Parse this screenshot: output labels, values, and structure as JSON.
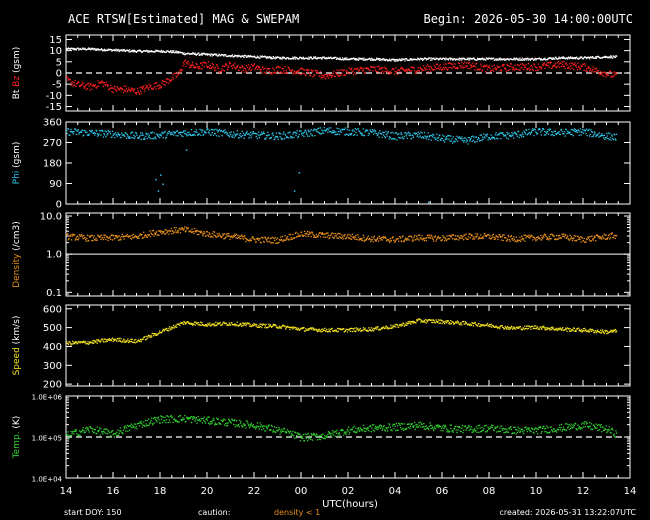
{
  "header": {
    "title": "ACE RTSW[Estimated] MAG & SWEPAM",
    "begin": "Begin: 2026-05-30 14:00:00UTC"
  },
  "footer": {
    "start_doy": "start DOY: 150",
    "caution": "caution:",
    "density_note": "density < 1",
    "created": "created: 2026-05-31 13:22:07UTC"
  },
  "colors": {
    "background": "#000000",
    "axes": "#ffffff",
    "bt": "#ffffff",
    "bz": "#ff2020",
    "phi": "#2ec4e6",
    "density": "#e8901c",
    "speed": "#f0e020",
    "temp": "#30d030",
    "caution_note": "#e8901c"
  },
  "chart_data": {
    "type": "scatter",
    "x_unit": "UTC(hours)",
    "x_ticks": [
      "14",
      "16",
      "18",
      "20",
      "22",
      "00",
      "02",
      "04",
      "06",
      "08",
      "10",
      "12",
      "14"
    ],
    "panels": [
      {
        "id": "mag",
        "ylabel_parts": [
          {
            "text": "Bt",
            "color": "#ffffff"
          },
          {
            "text": "Bz",
            "color": "#ff2020"
          },
          {
            "text": "(gsm)",
            "color": "#ffffff"
          }
        ],
        "ylim": [
          -17,
          17
        ],
        "yticks": [
          -15,
          -10,
          -5,
          0,
          5,
          10,
          15
        ],
        "ytick_labels": [
          "-15",
          "-10",
          "-5",
          "0",
          "5",
          "10",
          "15"
        ],
        "ref_line": 0,
        "series": [
          {
            "name": "Bt",
            "color": "#ffffff",
            "x": [
              0,
              1,
              2,
              3,
              3.6,
              4.2,
              4.8,
              5,
              6,
              7,
              8,
              9,
              10,
              11,
              12,
              13,
              14,
              15,
              16,
              17,
              18,
              19,
              20,
              21,
              22,
              23,
              23.4
            ],
            "y": [
              11,
              11,
              10.5,
              10,
              10,
              10,
              9.5,
              9,
              8.5,
              8,
              7.5,
              7,
              7,
              7,
              6.5,
              6.5,
              6,
              6.5,
              6.5,
              6.5,
              6.5,
              6.5,
              6.5,
              7,
              7,
              7.5,
              7.5
            ],
            "jitter": 0.5
          },
          {
            "name": "Bz",
            "color": "#ff2020",
            "x": [
              0,
              0.5,
              1,
              1.5,
              2,
              2.5,
              3,
              3.5,
              4,
              4.5,
              4.8,
              5,
              5.5,
              6,
              6.5,
              7,
              7.5,
              8,
              8.5,
              9,
              10,
              11,
              12,
              13,
              14,
              15,
              16,
              17,
              18,
              19,
              20,
              21,
              22,
              23,
              23.4
            ],
            "y": [
              -3,
              -5,
              -6,
              -4,
              -7,
              -7,
              -8,
              -6,
              -5,
              -2,
              0,
              5,
              3,
              4,
              2,
              4,
              2,
              3,
              1,
              2,
              1,
              -1,
              1,
              2,
              1,
              2,
              3,
              4,
              2,
              3,
              3,
              4,
              3,
              0,
              -1
            ],
            "jitter": 1.6
          }
        ]
      },
      {
        "id": "phi",
        "ylabel_parts": [
          {
            "text": "Phi",
            "color": "#2ec4e6"
          },
          {
            "text": "(gsm)",
            "color": "#ffffff"
          }
        ],
        "ylim": [
          0,
          360
        ],
        "yticks": [
          0,
          90,
          180,
          270,
          360
        ],
        "ytick_labels": [
          "0",
          "90",
          "180",
          "270",
          "360"
        ],
        "series": [
          {
            "name": "Phi",
            "color": "#2ec4e6",
            "x": [
              0,
              1,
              2,
              3,
              4,
              5,
              6,
              7,
              8,
              9,
              10,
              11,
              12,
              13,
              14,
              15,
              16,
              17,
              18,
              19,
              20,
              21,
              22,
              23,
              23.4
            ],
            "y": [
              320,
              315,
              310,
              300,
              305,
              315,
              320,
              310,
              305,
              300,
              310,
              325,
              320,
              315,
              300,
              305,
              290,
              280,
              300,
              305,
              320,
              315,
              320,
              300,
              295
            ],
            "jitter": 16,
            "outliers_x": [
              3.8,
              3.9,
              4.0,
              4.1,
              9.7,
              9.9,
              5.1,
              15.4
            ],
            "outliers_y": [
              110,
              60,
              130,
              90,
              60,
              140,
              240,
              10
            ]
          }
        ]
      },
      {
        "id": "density",
        "ylabel_parts": [
          {
            "text": "Density",
            "color": "#e8901c"
          },
          {
            "text": "(/cm3)",
            "color": "#ffffff"
          }
        ],
        "yscale": "log",
        "ylim": [
          0.08,
          12
        ],
        "yticks": [
          0.1,
          1.0,
          10.0
        ],
        "ytick_labels": [
          "0.1",
          "1.0",
          "10.0"
        ],
        "ref_line": 1.0,
        "series": [
          {
            "name": "Density",
            "color": "#e8901c",
            "x": [
              0,
              1,
              2,
              3,
              4,
              5,
              6,
              7,
              8,
              9,
              10,
              11,
              12,
              13,
              14,
              15,
              16,
              17,
              18,
              19,
              20,
              21,
              22,
              23,
              23.4
            ],
            "y": [
              3,
              2.7,
              2.8,
              3,
              4,
              4.5,
              3.5,
              3,
              2.5,
              2.4,
              3.5,
              3.2,
              3,
              2.6,
              2.5,
              2.8,
              2.7,
              3,
              3,
              2.6,
              2.8,
              3,
              2.5,
              3,
              3.2
            ],
            "jitter_log": 0.08
          }
        ]
      },
      {
        "id": "speed",
        "ylabel_parts": [
          {
            "text": "Speed",
            "color": "#f0e020"
          },
          {
            "text": "(km/s)",
            "color": "#ffffff"
          }
        ],
        "ylim": [
          190,
          620
        ],
        "yticks": [
          200,
          300,
          400,
          500,
          600
        ],
        "ytick_labels": [
          "200",
          "300",
          "400",
          "500",
          "600"
        ],
        "series": [
          {
            "name": "Speed",
            "color": "#f0e020",
            "x": [
              0,
              1,
              2,
              3,
              4,
              5,
              6,
              7,
              8,
              9,
              10,
              11,
              12,
              13,
              14,
              15,
              16,
              17,
              18,
              19,
              20,
              21,
              22,
              23,
              23.4
            ],
            "y": [
              420,
              425,
              440,
              430,
              480,
              530,
              520,
              525,
              515,
              510,
              495,
              490,
              490,
              495,
              510,
              540,
              535,
              525,
              515,
              500,
              505,
              495,
              490,
              480,
              485
            ],
            "jitter": 10
          }
        ]
      },
      {
        "id": "temp",
        "ylabel_parts": [
          {
            "text": "Temp.",
            "color": "#30d030"
          },
          {
            "text": "(K)",
            "color": "#ffffff"
          }
        ],
        "yscale": "log",
        "ylim": [
          10000,
          1000000
        ],
        "yticks": [
          10000,
          100000,
          1000000
        ],
        "ytick_labels": [
          "1.0E+04",
          "1.0E+05",
          "1.0E+06"
        ],
        "ref_line": 100000,
        "series": [
          {
            "name": "Temp",
            "color": "#30d030",
            "x": [
              0,
              1,
              2,
              3,
              4,
              5,
              6,
              7,
              8,
              9,
              10,
              11,
              12,
              13,
              14,
              15,
              16,
              17,
              18,
              19,
              20,
              21,
              22,
              23,
              23.4
            ],
            "y": [
              110000,
              160000,
              120000,
              200000,
              280000,
              290000,
              260000,
              230000,
              200000,
              150000,
              100000,
              110000,
              150000,
              170000,
              180000,
              200000,
              170000,
              160000,
              170000,
              150000,
              150000,
              170000,
              200000,
              160000,
              120000
            ],
            "jitter_log": 0.09
          }
        ]
      }
    ]
  }
}
